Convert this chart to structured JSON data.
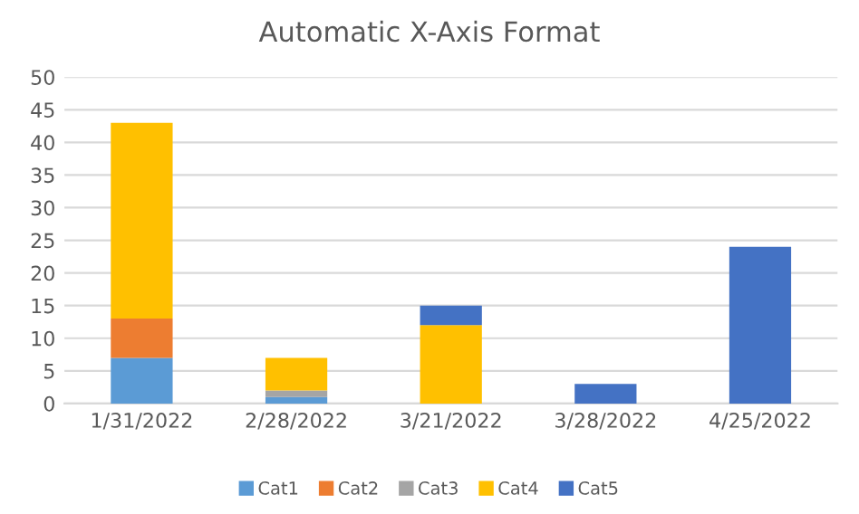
{
  "chart_data": {
    "type": "bar",
    "title": "Automatic X-Axis Format",
    "stacked": true,
    "categories": [
      "1/31/2022",
      "2/28/2022",
      "3/21/2022",
      "3/28/2022",
      "4/25/2022"
    ],
    "series": [
      {
        "name": "Cat1",
        "color": "#5b9bd5",
        "values": [
          7,
          1,
          null,
          null,
          null
        ]
      },
      {
        "name": "Cat2",
        "color": "#ed7d31",
        "values": [
          6,
          null,
          null,
          null,
          null
        ]
      },
      {
        "name": "Cat3",
        "color": "#a5a5a5",
        "values": [
          null,
          1,
          null,
          null,
          null
        ]
      },
      {
        "name": "Cat4",
        "color": "#ffc000",
        "values": [
          30,
          5,
          12,
          null,
          null
        ]
      },
      {
        "name": "Cat5",
        "color": "#4472c4",
        "values": [
          null,
          null,
          3,
          3,
          24
        ]
      }
    ],
    "ylim": [
      0,
      50
    ],
    "yticks": [
      0,
      5,
      10,
      15,
      20,
      25,
      30,
      35,
      40,
      45,
      50
    ],
    "grid": "y",
    "legend": "bottom"
  }
}
